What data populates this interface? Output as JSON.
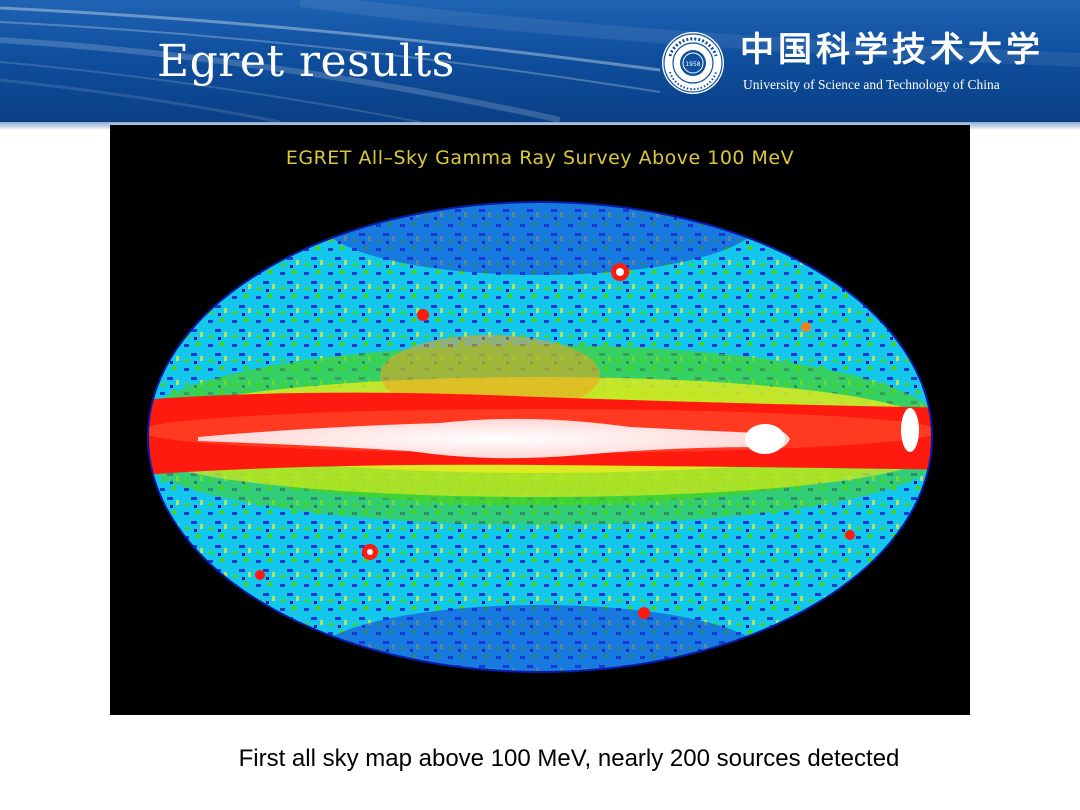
{
  "slide": {
    "title": "Egret results",
    "caption": "First all sky map above 100 MeV, nearly 200 sources detected"
  },
  "logo": {
    "name_cn": "中国科学技术大学",
    "name_en": "University of Science and Technology of China",
    "seal_year": "1958"
  },
  "figure": {
    "title": "EGRET All–Sky Gamma Ray Survey Above 100 MeV"
  },
  "colors": {
    "header_blue": "#0f4f9e",
    "map_title_yellow": "#d9c93a",
    "plane_red": "#ff1a10",
    "core_white": "#ffffff",
    "sky_cyan": "#14c8ec",
    "sky_blue": "#1a3ad6",
    "sky_green": "#49d418",
    "sky_yellow": "#f0ee20"
  }
}
